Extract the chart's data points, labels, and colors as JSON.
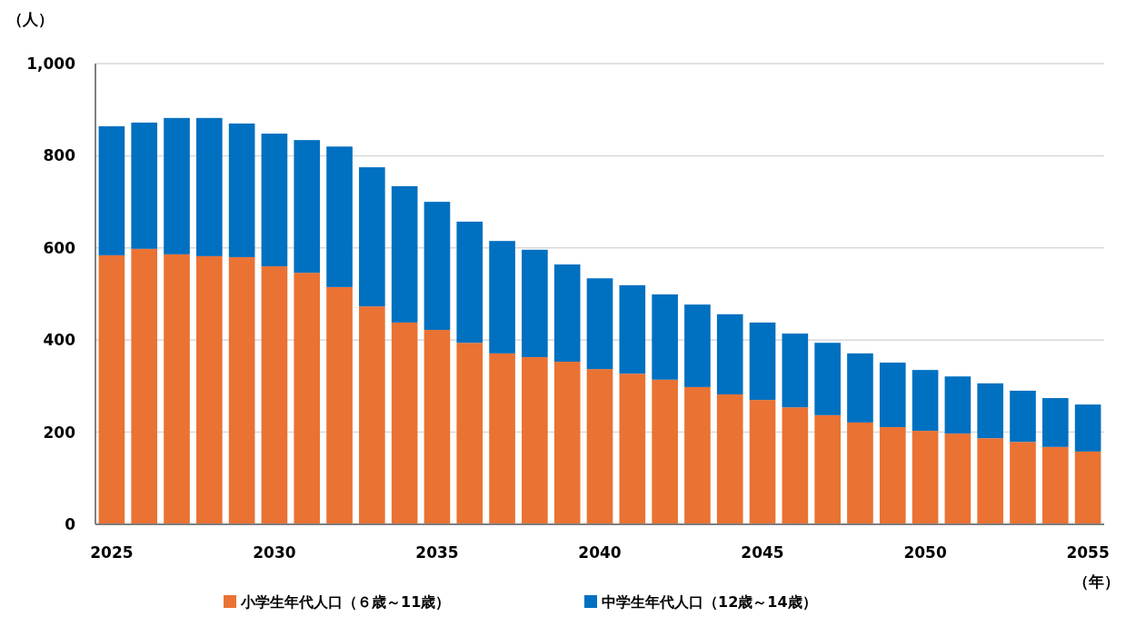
{
  "chart_data": {
    "type": "bar",
    "stacked": true,
    "ylabel": "（人）",
    "xlabel": "（年）",
    "categories": [
      "2025",
      null,
      null,
      null,
      null,
      "2030",
      null,
      null,
      null,
      null,
      "2035",
      null,
      null,
      null,
      null,
      "2040",
      null,
      null,
      null,
      null,
      "2045",
      null,
      null,
      null,
      null,
      "2050",
      null,
      null,
      null,
      null,
      "2055"
    ],
    "series": [
      {
        "name": "小学生年代人口（６歳～11歳）",
        "color": "#ea7233",
        "values": [
          584,
          598,
          586,
          582,
          580,
          560,
          546,
          515,
          473,
          438,
          422,
          394,
          371,
          363,
          353,
          337,
          327,
          314,
          298,
          282,
          270,
          254,
          237,
          221,
          211,
          203,
          197,
          187,
          179,
          168,
          158
        ]
      },
      {
        "name": "中学生年代人口（12歳～14歳）",
        "color": "#0070c0",
        "values": [
          280,
          274,
          296,
          300,
          290,
          288,
          288,
          305,
          302,
          296,
          278,
          263,
          244,
          233,
          211,
          197,
          192,
          185,
          179,
          174,
          168,
          160,
          157,
          150,
          140,
          132,
          124,
          119,
          111,
          106,
          102
        ]
      }
    ],
    "ylim": [
      0,
      1000
    ],
    "yticks": [
      0,
      200,
      400,
      600,
      800,
      {
        "value": 1000,
        "label": "1,000"
      }
    ],
    "grid": "y",
    "legend": "bottom"
  }
}
